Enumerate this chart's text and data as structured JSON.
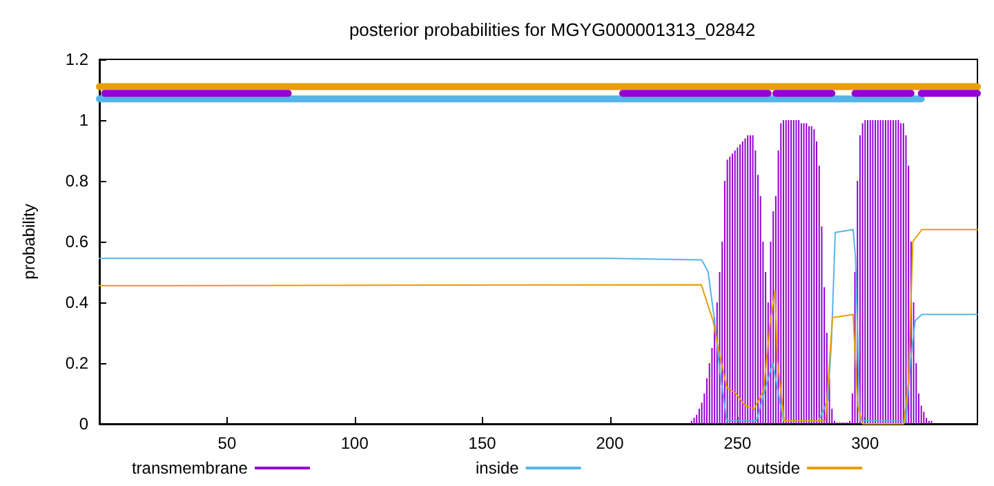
{
  "chart_data": {
    "type": "line",
    "title": "posterior probabilities for MGYG000001313_02842",
    "ylabel": "probability",
    "xlim": [
      0,
      344
    ],
    "xticks": [
      50,
      100,
      150,
      200,
      250,
      300
    ],
    "ylim": [
      0,
      1.2
    ],
    "yticks": [
      0,
      0.2,
      0.4,
      0.6,
      0.8,
      1,
      1.2
    ],
    "grid": false,
    "legend": "bottom",
    "marker": "none",
    "series": [
      {
        "name": "transmembrane",
        "type": "bar",
        "color": "#9400d3",
        "x": [
          232,
          233,
          234,
          235,
          236,
          237,
          238,
          239,
          240,
          241,
          242,
          243,
          244,
          245,
          246,
          247,
          248,
          249,
          250,
          251,
          252,
          253,
          254,
          255,
          256,
          257,
          258,
          259,
          260,
          261,
          262,
          263,
          264,
          265,
          266,
          267,
          268,
          269,
          270,
          271,
          272,
          273,
          274,
          275,
          276,
          277,
          278,
          279,
          280,
          281,
          282,
          283,
          284,
          285,
          286,
          287,
          288,
          289,
          290,
          291,
          292,
          293,
          294,
          295,
          296,
          297,
          298,
          299,
          300,
          301,
          302,
          303,
          304,
          305,
          306,
          307,
          308,
          309,
          310,
          311,
          312,
          313,
          314,
          315,
          316,
          317,
          318,
          319,
          320,
          321,
          322,
          323,
          324,
          325,
          326
        ],
        "values": [
          0.01,
          0.02,
          0.03,
          0.05,
          0.07,
          0.1,
          0.15,
          0.2,
          0.25,
          0.35,
          0.4,
          0.5,
          0.6,
          0.8,
          0.87,
          0.88,
          0.89,
          0.9,
          0.91,
          0.92,
          0.93,
          0.94,
          0.95,
          0.95,
          0.95,
          0.9,
          0.82,
          0.75,
          0.6,
          0.5,
          0.4,
          0.6,
          0.7,
          0.75,
          0.9,
          0.99,
          1,
          1,
          1,
          1,
          1,
          1,
          1,
          0.99,
          0.99,
          0.99,
          0.98,
          0.98,
          0.97,
          0.93,
          0.85,
          0.65,
          0.45,
          0.3,
          0.15,
          0.05,
          0.01,
          0,
          0,
          0,
          0,
          0,
          0.01,
          0.1,
          0.5,
          0.8,
          0.95,
          0.99,
          1,
          1,
          1,
          1,
          1,
          1,
          1,
          1,
          1,
          1,
          1,
          1,
          1,
          1,
          0.99,
          0.99,
          0.95,
          0.85,
          0.6,
          0.4,
          0.2,
          0.1,
          0.06,
          0.04,
          0.02,
          0.01,
          0.01
        ]
      },
      {
        "name": "inside",
        "color": "#56b4e9",
        "x": [
          0,
          200,
          236,
          238.5,
          241,
          243,
          245.8,
          257.5,
          260,
          263.8,
          265.6,
          268,
          281.8,
          285.4,
          286.8,
          288.3,
          295.3,
          296.2,
          298,
          316,
          317.8,
          319.6,
          322.3,
          344
        ],
        "values": [
          0.545,
          0.545,
          0.54,
          0.5,
          0.34,
          0.18,
          0.01,
          0.01,
          0.09,
          0.2,
          0.12,
          0.01,
          0.01,
          0.08,
          0.27,
          0.63,
          0.64,
          0.55,
          0.01,
          0.01,
          0.21,
          0.34,
          0.36,
          0.36
        ]
      },
      {
        "name": "outside",
        "color": "#e69f00",
        "x": [
          0,
          235.8,
          240.4,
          242.2,
          245.8,
          249.4,
          253,
          256.6,
          260.2,
          262.9,
          264.7,
          265.6,
          268.3,
          284.5,
          287.2,
          295.3,
          297.1,
          299,
          315.1,
          317,
          318.7,
          322.3,
          344
        ],
        "values": [
          0.455,
          0.458,
          0.34,
          0.26,
          0.12,
          0.1,
          0.06,
          0.05,
          0.11,
          0.34,
          0.44,
          0.21,
          0.01,
          0.01,
          0.35,
          0.36,
          0.06,
          0,
          0,
          0.14,
          0.6,
          0.64,
          0.64
        ]
      },
      {
        "color": "#e69f00",
        "x": [
          0,
          344
        ],
        "values": [
          1.11,
          1.11
        ]
      },
      {
        "color": "#56b4e9",
        "x": [
          0,
          322
        ],
        "values": [
          1.07,
          1.07
        ]
      },
      {
        "color": "#9400d3",
        "x": [
          2,
          74,
          138,
          205,
          262,
          263.5,
          265,
          287,
          291.5,
          296,
          318,
          320,
          322,
          344
        ],
        "values": [
          1.088,
          1.088,
          null,
          1.088,
          1.088,
          null,
          1.088,
          1.088,
          null,
          1.088,
          1.088,
          null,
          1.088,
          1.088
        ]
      }
    ]
  }
}
